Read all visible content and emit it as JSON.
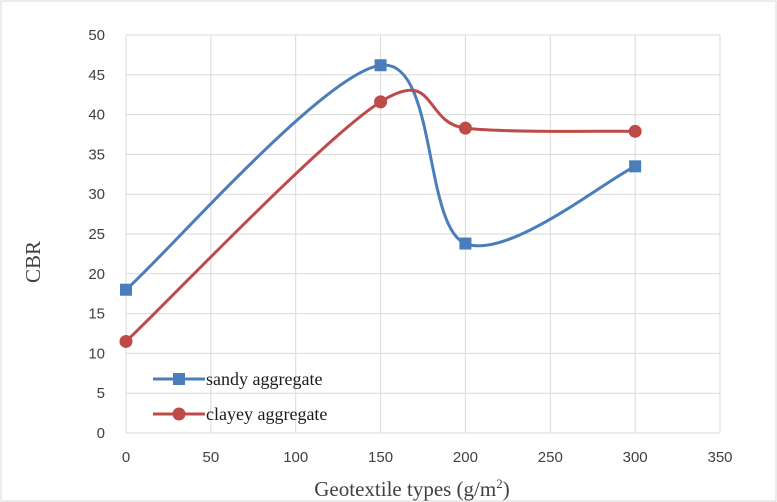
{
  "chart_data": {
    "type": "line",
    "smooth": true,
    "xlabel": "Geotextile types (g/m",
    "xlabel_superscript": "2",
    "xlabel_suffix": ")",
    "ylabel": "CBR",
    "xlim": [
      0,
      350
    ],
    "ylim": [
      0,
      50
    ],
    "xticks": [
      "0",
      "50",
      "100",
      "150",
      "200",
      "250",
      "300",
      "350"
    ],
    "yticks": [
      "0",
      "5",
      "10",
      "15",
      "20",
      "25",
      "30",
      "35",
      "40",
      "45",
      "50"
    ],
    "grid": true,
    "legend_position": "bottom-left",
    "series": [
      {
        "name": "sandy aggregate",
        "color": "#4a7ebb",
        "marker": "square",
        "x": [
          0,
          150,
          200,
          300
        ],
        "y": [
          18.0,
          46.2,
          23.8,
          33.5
        ]
      },
      {
        "name": "clayey aggregate",
        "color": "#be4b48",
        "marker": "circle",
        "x": [
          0,
          150,
          200,
          300
        ],
        "y": [
          11.5,
          41.6,
          38.3,
          37.9
        ]
      }
    ]
  }
}
